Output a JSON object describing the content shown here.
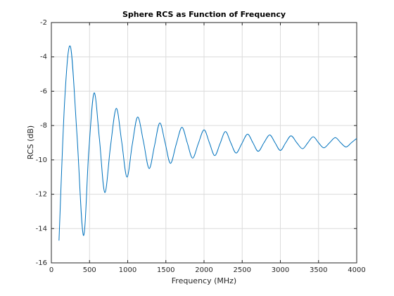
{
  "chart_data": {
    "type": "line",
    "title": "Sphere RCS as Function of Frequency",
    "xlabel": "Frequency (MHz)",
    "ylabel": "RCS (dB)",
    "xlim": [
      0,
      4000
    ],
    "xticks": [
      0,
      500,
      1000,
      1500,
      2000,
      2500,
      3000,
      3500,
      4000
    ],
    "ylim": [
      -16,
      -2
    ],
    "yticks": [
      -16,
      -14,
      -12,
      -10,
      -8,
      -6,
      -4,
      -2
    ],
    "grid": true,
    "x": [
      100,
      175,
      250,
      335,
      420,
      490,
      560,
      630,
      700,
      775,
      850,
      920,
      990,
      1060,
      1130,
      1205,
      1280,
      1350,
      1420,
      1490,
      1560,
      1635,
      1710,
      1780,
      1850,
      1925,
      2000,
      2070,
      2140,
      2210,
      2280,
      2350,
      2420,
      2495,
      2570,
      2640,
      2710,
      2785,
      2860,
      2930,
      3000,
      3070,
      3140,
      3215,
      3290,
      3360,
      3430,
      3500,
      3570,
      3645,
      3720,
      3790,
      3860,
      3930,
      4000
    ],
    "series": [
      {
        "color": "#0072bd",
        "values": [
          -14.7,
          -6.5,
          -3.4,
          -8.5,
          -14.4,
          -9.5,
          -6.1,
          -8.8,
          -11.9,
          -9.2,
          -7.0,
          -8.9,
          -11.0,
          -9.1,
          -7.5,
          -8.9,
          -10.5,
          -9.2,
          -7.85,
          -9.0,
          -10.2,
          -9.1,
          -8.1,
          -9.0,
          -9.9,
          -9.05,
          -8.25,
          -9.0,
          -9.75,
          -9.05,
          -8.35,
          -9.0,
          -9.6,
          -9.05,
          -8.5,
          -9.0,
          -9.5,
          -9.0,
          -8.55,
          -9.0,
          -9.45,
          -9.0,
          -8.6,
          -9.0,
          -9.35,
          -9.0,
          -8.65,
          -9.0,
          -9.3,
          -9.0,
          -8.7,
          -9.0,
          -9.25,
          -9.0,
          -8.75
        ]
      }
    ]
  }
}
